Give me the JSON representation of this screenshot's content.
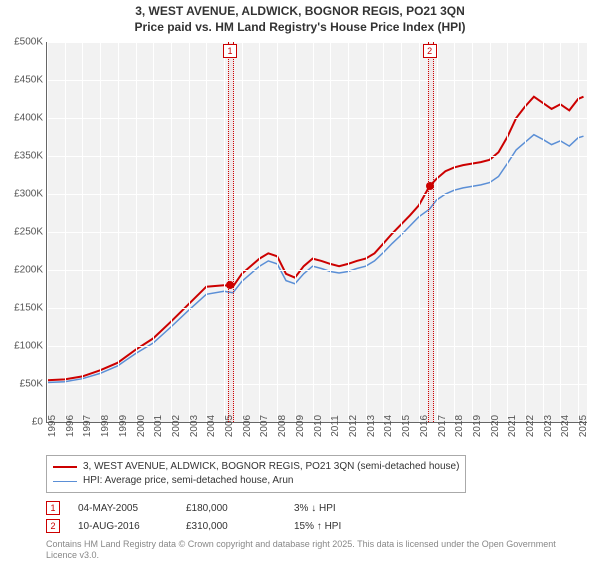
{
  "title_line1": "3, WEST AVENUE, ALDWICK, BOGNOR REGIS, PO21 3QN",
  "title_line2": "Price paid vs. HM Land Registry's House Price Index (HPI)",
  "chart": {
    "type": "line",
    "background_color": "#f2f2f2",
    "grid_color": "#ffffff",
    "x_start": 1995,
    "x_end": 2025.5,
    "xticks": [
      1995,
      1996,
      1997,
      1998,
      1999,
      2000,
      2001,
      2002,
      2003,
      2004,
      2005,
      2006,
      2007,
      2008,
      2009,
      2010,
      2011,
      2012,
      2013,
      2014,
      2015,
      2016,
      2017,
      2018,
      2019,
      2020,
      2021,
      2022,
      2023,
      2024,
      2025
    ],
    "ylim": [
      0,
      500000
    ],
    "ytick_step": 50000,
    "ytick_labels": [
      "£0",
      "£50K",
      "£100K",
      "£150K",
      "£200K",
      "£250K",
      "£300K",
      "£350K",
      "£400K",
      "£450K",
      "£500K"
    ],
    "series": [
      {
        "name": "3, WEST AVENUE, ALDWICK, BOGNOR REGIS, PO21 3QN (semi-detached house)",
        "color": "#cc0000",
        "width": 2,
        "data": [
          [
            1995,
            55000
          ],
          [
            1996,
            56000
          ],
          [
            1997,
            60000
          ],
          [
            1998,
            68000
          ],
          [
            1999,
            78000
          ],
          [
            2000,
            95000
          ],
          [
            2001,
            110000
          ],
          [
            2002,
            132000
          ],
          [
            2003,
            155000
          ],
          [
            2004,
            178000
          ],
          [
            2005,
            180000
          ],
          [
            2005.5,
            178000
          ],
          [
            2006,
            195000
          ],
          [
            2006.5,
            205000
          ],
          [
            2007,
            215000
          ],
          [
            2007.5,
            222000
          ],
          [
            2008,
            218000
          ],
          [
            2008.5,
            195000
          ],
          [
            2009,
            190000
          ],
          [
            2009.5,
            205000
          ],
          [
            2010,
            215000
          ],
          [
            2010.5,
            212000
          ],
          [
            2011,
            208000
          ],
          [
            2011.5,
            205000
          ],
          [
            2012,
            208000
          ],
          [
            2012.5,
            212000
          ],
          [
            2013,
            215000
          ],
          [
            2013.5,
            222000
          ],
          [
            2014,
            235000
          ],
          [
            2014.5,
            248000
          ],
          [
            2015,
            260000
          ],
          [
            2015.5,
            272000
          ],
          [
            2016,
            285000
          ],
          [
            2016.6,
            310000
          ],
          [
            2017,
            320000
          ],
          [
            2017.5,
            330000
          ],
          [
            2018,
            335000
          ],
          [
            2018.5,
            338000
          ],
          [
            2019,
            340000
          ],
          [
            2019.5,
            342000
          ],
          [
            2020,
            345000
          ],
          [
            2020.5,
            355000
          ],
          [
            2021,
            375000
          ],
          [
            2021.5,
            400000
          ],
          [
            2022,
            415000
          ],
          [
            2022.5,
            428000
          ],
          [
            2023,
            420000
          ],
          [
            2023.5,
            412000
          ],
          [
            2024,
            418000
          ],
          [
            2024.5,
            410000
          ],
          [
            2025,
            425000
          ],
          [
            2025.3,
            428000
          ]
        ]
      },
      {
        "name": "HPI: Average price, semi-detached house, Arun",
        "color": "#5b8fd6",
        "width": 1.5,
        "data": [
          [
            1995,
            52000
          ],
          [
            1996,
            53000
          ],
          [
            1997,
            57000
          ],
          [
            1998,
            64000
          ],
          [
            1999,
            74000
          ],
          [
            2000,
            90000
          ],
          [
            2001,
            104000
          ],
          [
            2002,
            125000
          ],
          [
            2003,
            147000
          ],
          [
            2004,
            168000
          ],
          [
            2005,
            172000
          ],
          [
            2005.5,
            170000
          ],
          [
            2006,
            185000
          ],
          [
            2006.5,
            195000
          ],
          [
            2007,
            205000
          ],
          [
            2007.5,
            212000
          ],
          [
            2008,
            208000
          ],
          [
            2008.5,
            186000
          ],
          [
            2009,
            182000
          ],
          [
            2009.5,
            195000
          ],
          [
            2010,
            205000
          ],
          [
            2010.5,
            202000
          ],
          [
            2011,
            198000
          ],
          [
            2011.5,
            196000
          ],
          [
            2012,
            198000
          ],
          [
            2012.5,
            202000
          ],
          [
            2013,
            205000
          ],
          [
            2013.5,
            212000
          ],
          [
            2014,
            223000
          ],
          [
            2014.5,
            235000
          ],
          [
            2015,
            246000
          ],
          [
            2015.5,
            258000
          ],
          [
            2016,
            270000
          ],
          [
            2016.6,
            280000
          ],
          [
            2017,
            292000
          ],
          [
            2017.5,
            300000
          ],
          [
            2018,
            305000
          ],
          [
            2018.5,
            308000
          ],
          [
            2019,
            310000
          ],
          [
            2019.5,
            312000
          ],
          [
            2020,
            315000
          ],
          [
            2020.5,
            323000
          ],
          [
            2021,
            340000
          ],
          [
            2021.5,
            358000
          ],
          [
            2022,
            368000
          ],
          [
            2022.5,
            378000
          ],
          [
            2023,
            372000
          ],
          [
            2023.5,
            365000
          ],
          [
            2024,
            370000
          ],
          [
            2024.5,
            363000
          ],
          [
            2025,
            374000
          ],
          [
            2025.3,
            376000
          ]
        ]
      }
    ],
    "sale_markers": [
      {
        "n": "1",
        "x": 2005.34,
        "price": 180000
      },
      {
        "n": "2",
        "x": 2016.61,
        "price": 310000
      }
    ],
    "marker_box_color": "#cc0000",
    "dot_color": "#cc0000"
  },
  "legend": {
    "series1": "3, WEST AVENUE, ALDWICK, BOGNOR REGIS, PO21 3QN (semi-detached house)",
    "series2": "HPI: Average price, semi-detached house, Arun"
  },
  "sales": [
    {
      "n": "1",
      "date": "04-MAY-2005",
      "price": "£180,000",
      "delta": "3% ↓ HPI"
    },
    {
      "n": "2",
      "date": "10-AUG-2016",
      "price": "£310,000",
      "delta": "15% ↑ HPI"
    }
  ],
  "footnote": "Contains HM Land Registry data © Crown copyright and database right 2025. This data is licensed under the Open Government Licence v3.0."
}
